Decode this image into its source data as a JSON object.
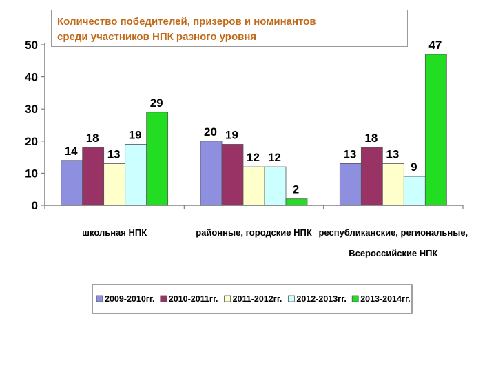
{
  "chart_data": {
    "type": "bar",
    "title_lines": [
      "Количество победителей, призеров и номинантов",
      "среди участников  НПК разного уровня"
    ],
    "categories": [
      [
        "школьная НПК"
      ],
      [
        "районные, городские НПК"
      ],
      [
        "республиканские, региональные,",
        "Всероссийские  НПК"
      ]
    ],
    "series": [
      {
        "name": "2009-2010гг.",
        "color": "#8f8fdf",
        "values": [
          14,
          20,
          13
        ]
      },
      {
        "name": "2010-2011гг.",
        "color": "#993366",
        "values": [
          18,
          19,
          18
        ]
      },
      {
        "name": "2011-2012гг.",
        "color": "#ffffcc",
        "values": [
          13,
          12,
          13
        ]
      },
      {
        "name": "2012-2013гг.",
        "color": "#ccffff",
        "values": [
          19,
          12,
          9
        ]
      },
      {
        "name": "2013-2014гг.",
        "color": "#22dd22",
        "values": [
          29,
          2,
          47
        ]
      }
    ],
    "yticks": [
      0,
      10,
      20,
      30,
      40,
      50
    ],
    "ylim": [
      0,
      50
    ],
    "grid": false,
    "legend_position": "bottom"
  }
}
